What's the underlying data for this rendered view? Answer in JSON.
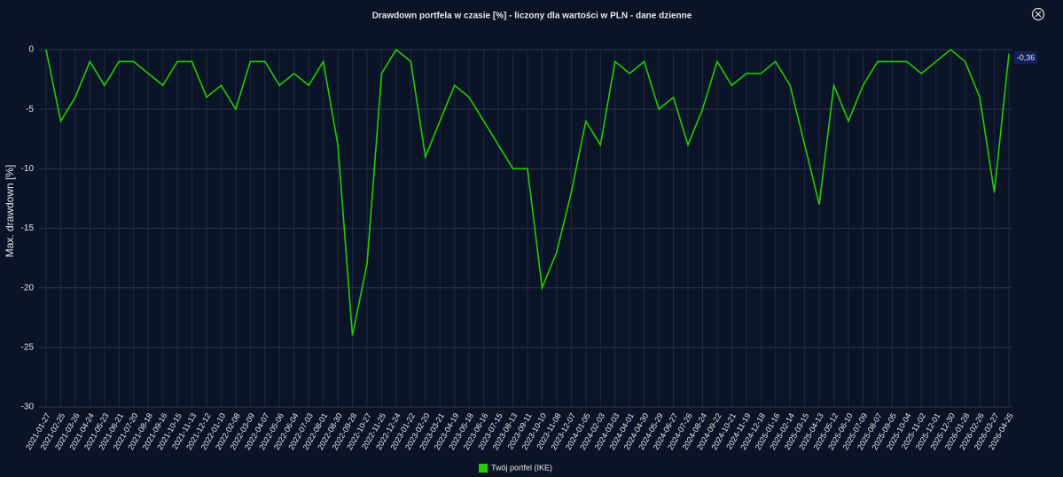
{
  "chart_data": {
    "type": "line",
    "title": "Drawdown portfela w czasie [%] - liczony dla wartości w PLN - dane dzienne",
    "y_label": "Max. drawdown [%]",
    "x": [
      "2021-01-27",
      "2021-02-25",
      "2021-03-26",
      "2021-04-24",
      "2021-05-23",
      "2021-06-21",
      "2021-07-20",
      "2021-08-18",
      "2021-09-16",
      "2021-10-15",
      "2021-11-13",
      "2021-12-12",
      "2022-01-10",
      "2022-02-08",
      "2022-03-09",
      "2022-04-07",
      "2022-05-06",
      "2022-06-04",
      "2022-07-03",
      "2022-08-01",
      "2022-08-30",
      "2022-09-28",
      "2022-10-27",
      "2022-11-25",
      "2022-12-24",
      "2023-01-22",
      "2023-02-20",
      "2023-03-21",
      "2023-04-19",
      "2023-05-18",
      "2023-06-16",
      "2023-07-15",
      "2023-08-13",
      "2023-09-11",
      "2023-10-10",
      "2023-11-08",
      "2023-12-07",
      "2024-01-05",
      "2024-02-03",
      "2024-03-03",
      "2024-04-01",
      "2024-04-30",
      "2024-05-29",
      "2024-06-27",
      "2024-07-26",
      "2024-08-24",
      "2024-09-22",
      "2024-10-21",
      "2024-11-19",
      "2024-12-18",
      "2025-01-16",
      "2025-02-14",
      "2025-03-15",
      "2025-04-13",
      "2025-05-12",
      "2025-06-10",
      "2025-07-09",
      "2025-08-07",
      "2025-09-05",
      "2025-10-04",
      "2025-11-02",
      "2025-12-01",
      "2025-12-30",
      "2026-01-28",
      "2026-02-26",
      "2026-03-27",
      "2026-04-25"
    ],
    "series": [
      {
        "name": "Twój portfel (IKE)",
        "color": "#22cc00",
        "values": [
          0,
          -6,
          -4,
          -1,
          -3,
          -1,
          -1,
          -2,
          -3,
          -1,
          -1,
          -4,
          -3,
          -5,
          -1,
          -1,
          -3,
          -2,
          -3,
          -1,
          -8,
          -24,
          -18,
          -2,
          0,
          -1,
          -9,
          -6,
          -3,
          -4,
          -6,
          -8,
          -10,
          -10,
          -20,
          -17,
          -12,
          -6,
          -8,
          -1,
          -2,
          -1,
          -5,
          -4,
          -8,
          -5,
          -1,
          -3,
          -2,
          -2,
          -1,
          -3,
          -8,
          -13,
          -3,
          -6,
          -3,
          -1,
          -1,
          -1,
          -2,
          -1,
          0,
          -1,
          -4,
          -12,
          -0.36
        ],
        "last_value_label": "-0,36"
      }
    ],
    "ylim": [
      -30,
      0
    ],
    "yticks": [
      0,
      -5,
      -10,
      -15,
      -20,
      -25,
      -30
    ],
    "grid": true,
    "legend": "bottom"
  }
}
